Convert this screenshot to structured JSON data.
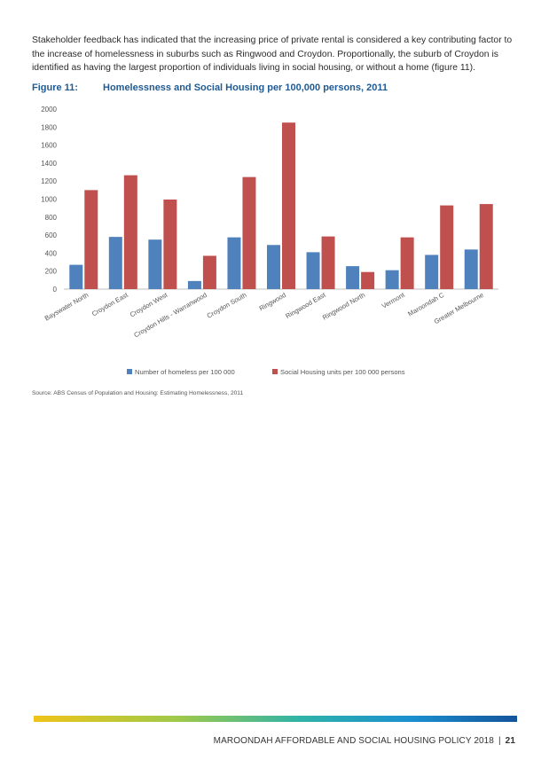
{
  "intro": "Stakeholder feedback has indicated that the increasing price of private rental is considered a key contributing factor to the increase of homelessness in suburbs such as Ringwood and Croydon. Proportionally, the suburb of Croydon is identified as having the largest proportion of individuals living in social housing, or without a home (figure 11).",
  "figure": {
    "number": "Figure 11:",
    "title": "Homelessness and Social Housing per 100,000 persons, 2011"
  },
  "chart_data": {
    "type": "bar",
    "categories": [
      "Bayswater North",
      "Croydon East",
      "Croydon West",
      "Croydon Hills - Warranwood",
      "Croydon South",
      "Ringwood",
      "Ringwood East",
      "Ringwood North",
      "Vermont",
      "Maroondah C",
      "Greater Melbourne"
    ],
    "series": [
      {
        "name": "Number of homeless per 100 000",
        "color": "#4f81bd",
        "values": [
          270,
          580,
          550,
          90,
          575,
          490,
          410,
          255,
          210,
          380,
          440
        ]
      },
      {
        "name": "Social Housing units per 100 000 persons",
        "color": "#c0504d",
        "values": [
          1100,
          1265,
          995,
          370,
          1245,
          1850,
          585,
          190,
          575,
          930,
          945
        ]
      }
    ],
    "y_ticks": [
      "0",
      "200",
      "400",
      "600",
      "800",
      "1000",
      "1200",
      "1400",
      "1600",
      "1800",
      "2000"
    ],
    "ylim": [
      0,
      2000
    ],
    "grid": false,
    "legend_position": "bottom"
  },
  "source": "Source: ABS Census of Population and Housing: Estimating Homelessness, 2011",
  "footer": {
    "title": "MAROONDAH AFFORDABLE AND SOCIAL HOUSING POLICY 2018",
    "separator": "|",
    "page": "21"
  }
}
